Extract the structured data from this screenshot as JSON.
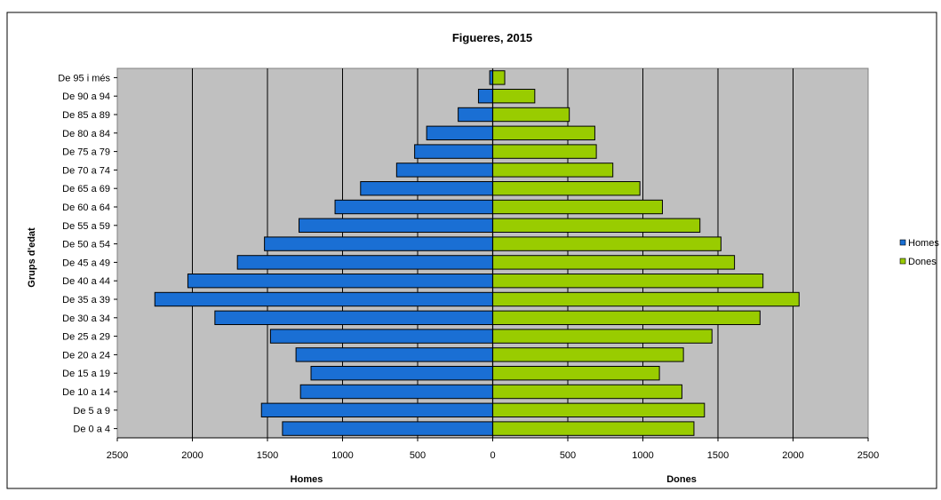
{
  "chart_data": {
    "type": "bar",
    "orientation": "horizontal",
    "layout": "population-pyramid",
    "title": "Figueres, 2015",
    "ylabel": "Grups d'edat",
    "xlabel_left": "Homes",
    "xlabel_right": "Dones",
    "xlim": [
      -2500,
      2500
    ],
    "x_ticks": [
      2500,
      2000,
      1500,
      1000,
      500,
      0,
      500,
      1000,
      1500,
      2000,
      2500
    ],
    "x_tick_values": [
      -2500,
      -2000,
      -1500,
      -1000,
      -500,
      0,
      500,
      1000,
      1500,
      2000,
      2500
    ],
    "categories": [
      "De 0 a 4",
      "De 5 a 9",
      "De 10 a 14",
      "De 15 a 19",
      "De 20 a 24",
      "De 25 a 29",
      "De 30 a 34",
      "De 35 a 39",
      "De 40 a 44",
      "De 45 a 49",
      "De 50 a 54",
      "De 55 a 59",
      "De 60 a 64",
      "De 65 a 69",
      "De 70 a 74",
      "De 75 a 79",
      "De 80 a 84",
      "De 85 a 89",
      "De 90 a 94",
      "De 95 i més"
    ],
    "series": [
      {
        "name": "Homes",
        "color": "#1a6fd4",
        "values": [
          1400,
          1540,
          1280,
          1210,
          1310,
          1480,
          1850,
          2250,
          2030,
          1700,
          1520,
          1290,
          1050,
          880,
          640,
          520,
          440,
          230,
          95,
          20
        ]
      },
      {
        "name": "Dones",
        "color": "#99cc00",
        "values": [
          1340,
          1410,
          1260,
          1110,
          1270,
          1460,
          1780,
          2040,
          1800,
          1610,
          1520,
          1380,
          1130,
          980,
          800,
          690,
          680,
          510,
          280,
          80
        ]
      }
    ],
    "grid": "vertical",
    "plot_background": "#c0c0c0",
    "legend_position": "right"
  }
}
